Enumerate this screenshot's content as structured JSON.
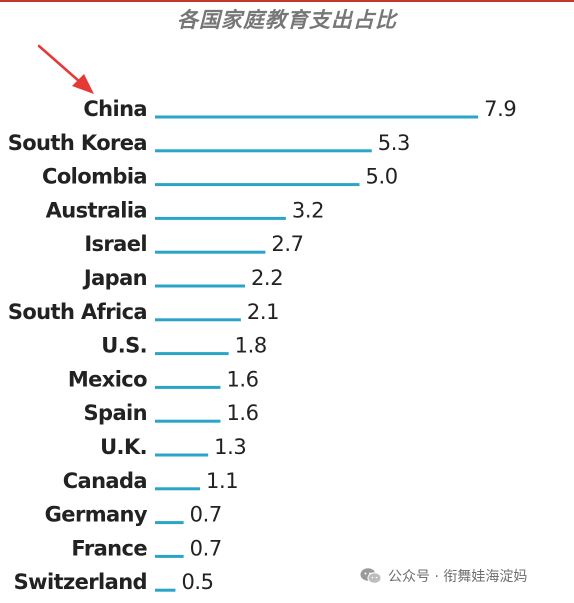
{
  "chart_data": {
    "type": "bar",
    "orientation": "horizontal",
    "title": "各国家庭教育支出占比",
    "categories": [
      "China",
      "South Korea",
      "Colombia",
      "Australia",
      "Israel",
      "Japan",
      "South Africa",
      "U.S.",
      "Mexico",
      "Spain",
      "U.K.",
      "Canada",
      "Germany",
      "France",
      "Switzerland"
    ],
    "values": [
      7.9,
      5.3,
      5.0,
      3.2,
      2.7,
      2.2,
      2.1,
      1.8,
      1.6,
      1.6,
      1.3,
      1.1,
      0.7,
      0.7,
      0.5
    ],
    "value_labels": [
      "7.9",
      "5.3",
      "5.0",
      "3.2",
      "2.7",
      "2.2",
      "2.1",
      "1.8",
      "1.6",
      "1.6",
      "1.3",
      "1.1",
      "0.7",
      "0.7",
      "0.5"
    ],
    "grid": false,
    "bar_color": "#2aa5c8",
    "annotation": {
      "type": "arrow",
      "target": "China",
      "color": "#e53935"
    }
  },
  "watermark": {
    "icon": "wechat-icon",
    "text": "公众号 · 衔舞娃海淀妈"
  },
  "colors": {
    "title": "#777777",
    "top_rule": "#c0392b",
    "text": "#222222",
    "watermark": "#6f6f6f"
  }
}
